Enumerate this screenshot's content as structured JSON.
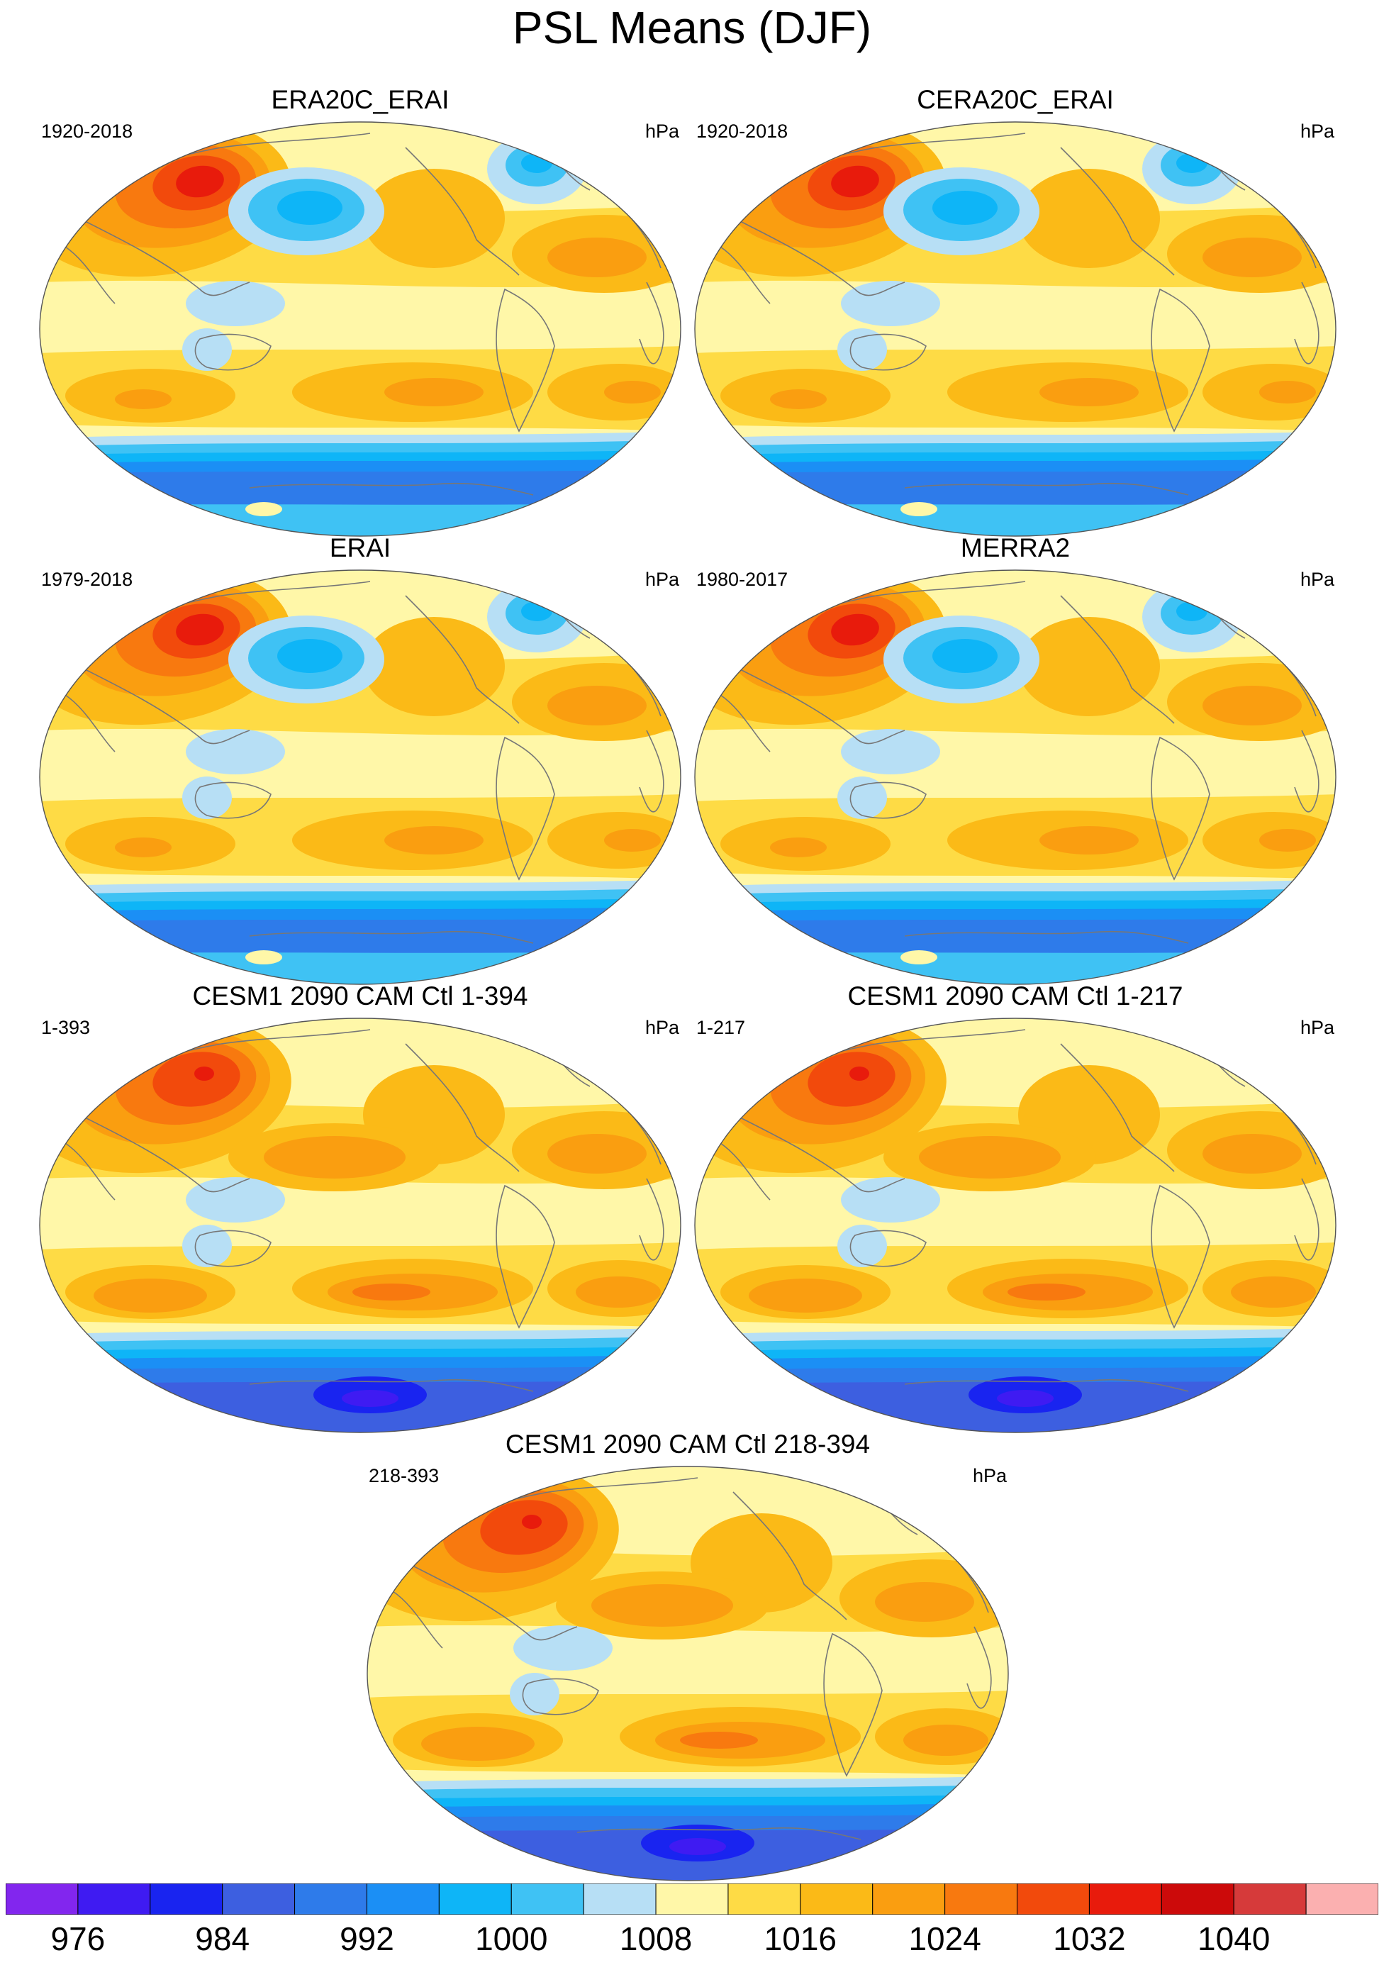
{
  "figure": {
    "title": "PSL Means (DJF)",
    "units": "hPa"
  },
  "colors": {
    "c_lt976": "#8226ee",
    "c_976_980": "#3f1bf2",
    "c_980_984": "#1924f0",
    "c_984_988": "#3d5fe0",
    "c_988_992": "#2e7bea",
    "c_992_996": "#1b8ff5",
    "c_996_1000": "#0eb5f7",
    "c_1000_1004": "#3fc2f4",
    "c_1004_1008": "#b7dff5",
    "c_1008_1012": "#fff7a8",
    "c_1012_1016": "#fedb45",
    "c_1016_1020": "#fbba17",
    "c_1020_1024": "#fa9e10",
    "c_1024_1028": "#f8790f",
    "c_1028_1032": "#f24a0c",
    "c_1032_1036": "#e81b0c",
    "c_1036_1040": "#cc0a0a",
    "c_1040_1044": "#d63a3a",
    "c_gt1044": "#fbb0b0",
    "coast": "#777777"
  },
  "panels": [
    {
      "name": "ERA20C_ERAI",
      "period": "1920-2018",
      "units": "hPa",
      "style": "reanalysis"
    },
    {
      "name": "CERA20C_ERAI",
      "period": "1920-2018",
      "units": "hPa",
      "style": "reanalysis"
    },
    {
      "name": "ERAI",
      "period": "1979-2018",
      "units": "hPa",
      "style": "reanalysis"
    },
    {
      "name": "MERRA2",
      "period": "1980-2017",
      "units": "hPa",
      "style": "reanalysis"
    },
    {
      "name": "CESM1 2090 CAM Ctl 1-394",
      "period": "1-393",
      "units": "hPa",
      "style": "model"
    },
    {
      "name": "CESM1 2090 CAM Ctl 1-217",
      "period": "1-217",
      "units": "hPa",
      "style": "model"
    },
    {
      "name": "CESM1 2090 CAM Ctl 218-394",
      "period": "218-393",
      "units": "hPa",
      "style": "model"
    }
  ],
  "colorbar": {
    "labels": [
      "976",
      "984",
      "992",
      "1000",
      "1008",
      "1016",
      "1024",
      "1032",
      "1040"
    ],
    "boundaries_hPa": [
      976,
      980,
      984,
      988,
      992,
      996,
      1000,
      1004,
      1008,
      1012,
      1016,
      1020,
      1024,
      1028,
      1032,
      1036,
      1040,
      1044
    ],
    "box_colors": [
      "#8226ee",
      "#3f1bf2",
      "#1924f0",
      "#3d5fe0",
      "#2e7bea",
      "#1b8ff5",
      "#0eb5f7",
      "#3fc2f4",
      "#b7dff5",
      "#fff7a8",
      "#fedb45",
      "#fbba17",
      "#fa9e10",
      "#f8790f",
      "#f24a0c",
      "#e81b0c",
      "#cc0a0a",
      "#d63a3a",
      "#fbb0b0"
    ]
  }
}
